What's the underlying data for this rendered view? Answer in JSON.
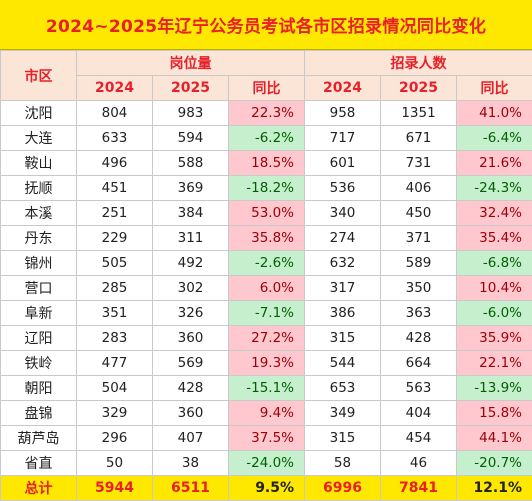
{
  "title": "2024~2025年辽宁公务员考试各市区招录情况同比变化",
  "header": {
    "region": "市区",
    "group_positions": "岗位量",
    "group_hires": "招录人数",
    "year_2024": "2024",
    "year_2025": "2025",
    "yoy": "同比"
  },
  "rows": [
    {
      "city": "沈阳",
      "pos_2024": "804",
      "pos_2025": "983",
      "pos_yoy": "22.3%",
      "pos_dir": "up",
      "hire_2024": "958",
      "hire_2025": "1351",
      "hire_yoy": "41.0%",
      "hire_dir": "up"
    },
    {
      "city": "大连",
      "pos_2024": "633",
      "pos_2025": "594",
      "pos_yoy": "-6.2%",
      "pos_dir": "down",
      "hire_2024": "717",
      "hire_2025": "671",
      "hire_yoy": "-6.4%",
      "hire_dir": "down"
    },
    {
      "city": "鞍山",
      "pos_2024": "496",
      "pos_2025": "588",
      "pos_yoy": "18.5%",
      "pos_dir": "up",
      "hire_2024": "601",
      "hire_2025": "731",
      "hire_yoy": "21.6%",
      "hire_dir": "up"
    },
    {
      "city": "抚顺",
      "pos_2024": "451",
      "pos_2025": "369",
      "pos_yoy": "-18.2%",
      "pos_dir": "down",
      "hire_2024": "536",
      "hire_2025": "406",
      "hire_yoy": "-24.3%",
      "hire_dir": "down"
    },
    {
      "city": "本溪",
      "pos_2024": "251",
      "pos_2025": "384",
      "pos_yoy": "53.0%",
      "pos_dir": "up",
      "hire_2024": "340",
      "hire_2025": "450",
      "hire_yoy": "32.4%",
      "hire_dir": "up"
    },
    {
      "city": "丹东",
      "pos_2024": "229",
      "pos_2025": "311",
      "pos_yoy": "35.8%",
      "pos_dir": "up",
      "hire_2024": "274",
      "hire_2025": "371",
      "hire_yoy": "35.4%",
      "hire_dir": "up"
    },
    {
      "city": "锦州",
      "pos_2024": "505",
      "pos_2025": "492",
      "pos_yoy": "-2.6%",
      "pos_dir": "down",
      "hire_2024": "632",
      "hire_2025": "589",
      "hire_yoy": "-6.8%",
      "hire_dir": "down"
    },
    {
      "city": "营口",
      "pos_2024": "285",
      "pos_2025": "302",
      "pos_yoy": "6.0%",
      "pos_dir": "up",
      "hire_2024": "317",
      "hire_2025": "350",
      "hire_yoy": "10.4%",
      "hire_dir": "up"
    },
    {
      "city": "阜新",
      "pos_2024": "351",
      "pos_2025": "326",
      "pos_yoy": "-7.1%",
      "pos_dir": "down",
      "hire_2024": "386",
      "hire_2025": "363",
      "hire_yoy": "-6.0%",
      "hire_dir": "down"
    },
    {
      "city": "辽阳",
      "pos_2024": "283",
      "pos_2025": "360",
      "pos_yoy": "27.2%",
      "pos_dir": "up",
      "hire_2024": "315",
      "hire_2025": "428",
      "hire_yoy": "35.9%",
      "hire_dir": "up"
    },
    {
      "city": "铁岭",
      "pos_2024": "477",
      "pos_2025": "569",
      "pos_yoy": "19.3%",
      "pos_dir": "up",
      "hire_2024": "544",
      "hire_2025": "664",
      "hire_yoy": "22.1%",
      "hire_dir": "up"
    },
    {
      "city": "朝阳",
      "pos_2024": "504",
      "pos_2025": "428",
      "pos_yoy": "-15.1%",
      "pos_dir": "down",
      "hire_2024": "653",
      "hire_2025": "563",
      "hire_yoy": "-13.9%",
      "hire_dir": "down"
    },
    {
      "city": "盘锦",
      "pos_2024": "329",
      "pos_2025": "360",
      "pos_yoy": "9.4%",
      "pos_dir": "up",
      "hire_2024": "349",
      "hire_2025": "404",
      "hire_yoy": "15.8%",
      "hire_dir": "up"
    },
    {
      "city": "葫芦岛",
      "pos_2024": "296",
      "pos_2025": "407",
      "pos_yoy": "37.5%",
      "pos_dir": "up",
      "hire_2024": "315",
      "hire_2025": "454",
      "hire_yoy": "44.1%",
      "hire_dir": "up"
    },
    {
      "city": "省直",
      "pos_2024": "50",
      "pos_2025": "38",
      "pos_yoy": "-24.0%",
      "pos_dir": "down",
      "hire_2024": "58",
      "hire_2025": "46",
      "hire_yoy": "-20.7%",
      "hire_dir": "down"
    }
  ],
  "total": {
    "label": "总计",
    "pos_2024": "5944",
    "pos_2025": "6511",
    "pos_yoy": "9.5%",
    "hire_2024": "6996",
    "hire_2025": "7841",
    "hire_yoy": "12.1%"
  },
  "colors": {
    "title_bg": "#ffe800",
    "title_text": "#e8202a",
    "header_bg": "#fbe5d6",
    "increase_bg": "#ffc7ce",
    "decrease_bg": "#c6efce"
  }
}
